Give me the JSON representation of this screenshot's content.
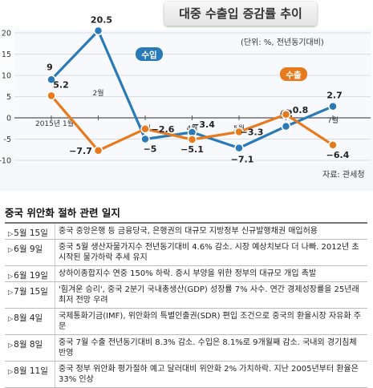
{
  "chart_data": {
    "type": "line",
    "title": "대중 수출입 증감률 추이",
    "unit_note": "(단위: %, 전년동기대비)",
    "source": "자료: 관세청",
    "categories": [
      "2015년 1월",
      "2월",
      "3월",
      "4월",
      "5월",
      "6월",
      "7월"
    ],
    "ylim": [
      -10,
      20
    ],
    "yticks": [
      -10,
      -5,
      0,
      5,
      10,
      15,
      20
    ],
    "series": [
      {
        "name": "수입",
        "color": "#2a7ab8",
        "values": [
          9,
          20.5,
          -5,
          -3.4,
          -7.1,
          -2,
          2.7
        ],
        "labels": [
          "9",
          "20.5",
          "−5",
          "−3.4",
          "−7.1",
          "−2",
          "2.7"
        ]
      },
      {
        "name": "수출",
        "color": "#e87a1e",
        "values": [
          5.2,
          -7.7,
          -2.6,
          -5.1,
          -3.3,
          0.8,
          -6.4
        ],
        "labels": [
          "5.2",
          "−7.7",
          "−2.6",
          "−5.1",
          "−3.3",
          "0.8",
          "−6.4"
        ]
      }
    ]
  },
  "timeline": {
    "title": "중국 위안화 절하 관련 일지",
    "events": [
      {
        "date": "5월 15일",
        "text": "중국 중앙은행 등 금융당국, 은행권의 대규모 지방정부 신규발행채권 매입허용"
      },
      {
        "date": "6월 9일",
        "text": "중국 5월 생산자물가지수 전년동기대비 4.6% 감소. 시장 예상치보다 더 나빠. 2012년 초 시작된 물가하락 추세 유지"
      },
      {
        "date": "6월 19일",
        "text": "상하이종합지수 연중 150% 하락. 증시 부양을 위한 정부의 대규모 개입 촉발"
      },
      {
        "date": "7월 15일",
        "text": "'힘겨운 승리', 중국 2분기 국내총생산(GDP) 성장률 7% 사수. 연간 경제성장률을 25년래 최저 전망 우려"
      },
      {
        "date": "8월 4일",
        "text": "국제통화기금(IMF), 위안화의 특별인출권(SDR) 편입 조건으로 중국의 환율시장 자유화 주문"
      },
      {
        "date": "8월 8일",
        "text": "중국 7월 수출 전년동기대비 8.3% 감소. 수입은 8.1%로 9개월째 감소. 국내외 경기침체 반영"
      },
      {
        "date": "8월 11일",
        "text": "중국 정부 위안화 평가절하 예고 달러대비 위안화 2% 가치하락. 지난 2005년부터 환율은 33% 인상"
      }
    ]
  }
}
